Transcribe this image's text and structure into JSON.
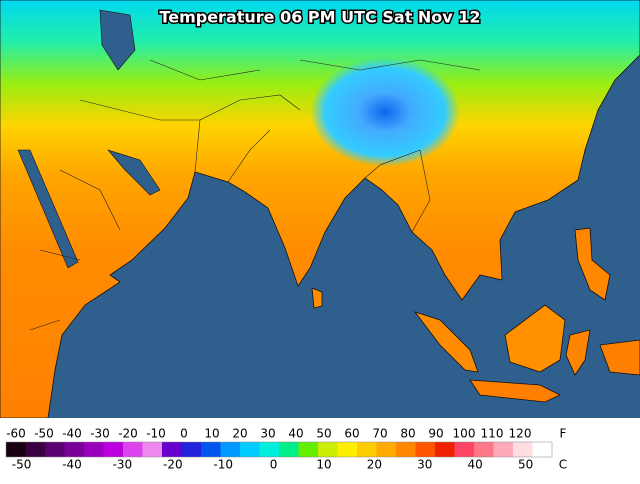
{
  "title": "Temperature 06 PM UTC Sat Nov 12",
  "legend": {
    "fahrenheit": {
      "unit": "F",
      "ticks": [
        -60,
        -50,
        -40,
        -30,
        -20,
        -10,
        0,
        10,
        20,
        30,
        40,
        50,
        60,
        70,
        80,
        90,
        100,
        110,
        120
      ]
    },
    "celsius": {
      "unit": "C",
      "ticks": [
        -50,
        -40,
        -30,
        -20,
        -10,
        0,
        10,
        20,
        30,
        40,
        50
      ]
    },
    "colors": [
      "#1a0010",
      "#3a0040",
      "#5a0070",
      "#7a0099",
      "#9900bb",
      "#bb00dd",
      "#dd44ee",
      "#ee88ee",
      "#6600cc",
      "#2222dd",
      "#0055ee",
      "#0099ff",
      "#00ccff",
      "#00eedd",
      "#00ee88",
      "#66ee00",
      "#ccee00",
      "#ffee00",
      "#ffcc00",
      "#ffaa00",
      "#ff8800",
      "#ff5500",
      "#ee2200",
      "#ff4466",
      "#ff7788",
      "#ffaabb",
      "#ffdde0",
      "#ffffff"
    ]
  }
}
